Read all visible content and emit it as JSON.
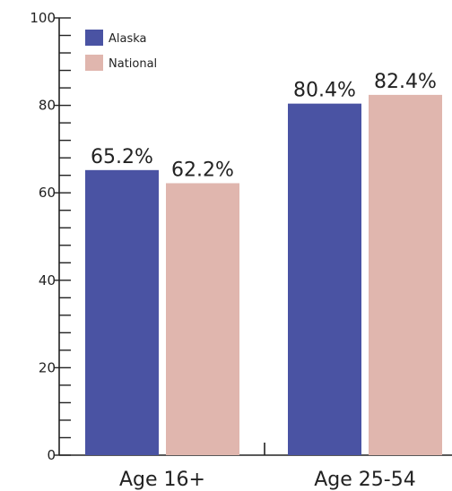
{
  "chart_data": {
    "type": "bar",
    "categories": [
      "Age 16+",
      "Age 25-54"
    ],
    "series": [
      {
        "name": "Alaska",
        "values": [
          65.2,
          80.4
        ],
        "labels": [
          "65.2%",
          "80.4%"
        ],
        "color": "#4a53a3"
      },
      {
        "name": "National",
        "values": [
          62.2,
          82.4
        ],
        "labels": [
          "62.2%",
          "82.4%"
        ],
        "color": "#e0b6ae"
      }
    ],
    "ylim": [
      0,
      100
    ],
    "yticks": [
      "0",
      "20",
      "40",
      "60",
      "80",
      "100"
    ],
    "minor_tick_step": 4,
    "grid": false,
    "legend_position": "top-left"
  }
}
